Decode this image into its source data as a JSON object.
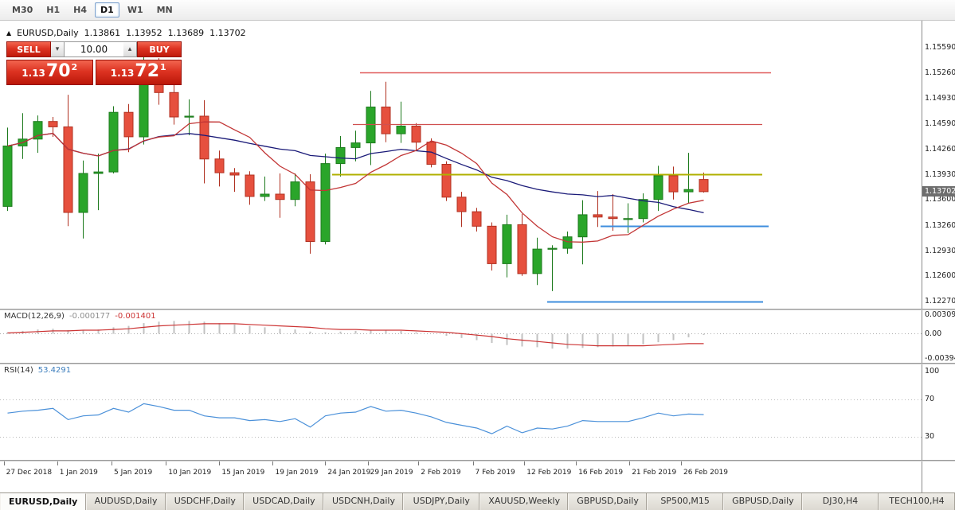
{
  "toolbar": {
    "timeframes": [
      {
        "label": "M30",
        "active": false
      },
      {
        "label": "H1",
        "active": false
      },
      {
        "label": "H4",
        "active": false
      },
      {
        "label": "D1",
        "active": true
      },
      {
        "label": "W1",
        "active": false
      },
      {
        "label": "MN",
        "active": false
      }
    ]
  },
  "chart_header": {
    "symbol": "EURUSD,Daily",
    "open": "1.13861",
    "high": "1.13952",
    "low": "1.13689",
    "close": "1.13702"
  },
  "trade_panel": {
    "sell_label": "SELL",
    "buy_label": "BUY",
    "volume": "10.00",
    "sell_price": {
      "base": "1.13",
      "big": "70",
      "sup": "2"
    },
    "buy_price": {
      "base": "1.13",
      "big": "72",
      "sup": "1"
    }
  },
  "bottom_tabs": [
    {
      "label": "EURUSD,Daily",
      "active": true
    },
    {
      "label": "AUDUSD,Daily",
      "active": false
    },
    {
      "label": "USDCHF,Daily",
      "active": false
    },
    {
      "label": "USDCAD,Daily",
      "active": false
    },
    {
      "label": "USDCNH,Daily",
      "active": false
    },
    {
      "label": "USDJPY,Daily",
      "active": false
    },
    {
      "label": "XAUUSD,Weekly",
      "active": false
    },
    {
      "label": "GBPUSD,Daily",
      "active": false
    },
    {
      "label": "SP500,M15",
      "active": false
    },
    {
      "label": "GBPUSD,Daily",
      "active": false
    },
    {
      "label": "DJ30,H4",
      "active": false
    },
    {
      "label": "TECH100,H4",
      "active": false
    }
  ],
  "chart_data": {
    "type": "candlestick",
    "symbol": "EURUSD",
    "timeframe": "Daily",
    "price_range": {
      "max": 1.1594,
      "min": 1.1217
    },
    "candles": [
      [
        1.1351,
        1.1454,
        1.1345,
        1.143
      ],
      [
        1.143,
        1.1473,
        1.1413,
        1.1439
      ],
      [
        1.1439,
        1.147,
        1.1421,
        1.1462
      ],
      [
        1.1462,
        1.1468,
        1.1442,
        1.1455
      ],
      [
        1.1455,
        1.1497,
        1.1325,
        1.1343
      ],
      [
        1.1343,
        1.1411,
        1.1309,
        1.1394
      ],
      [
        1.1394,
        1.142,
        1.1346,
        1.1396
      ],
      [
        1.1396,
        1.1482,
        1.1394,
        1.1474
      ],
      [
        1.1474,
        1.1485,
        1.1422,
        1.1442
      ],
      [
        1.1442,
        1.1552,
        1.1432,
        1.153
      ],
      [
        1.153,
        1.1545,
        1.1484,
        1.15
      ],
      [
        1.15,
        1.1541,
        1.1458,
        1.1468
      ],
      [
        1.1468,
        1.1491,
        1.1444,
        1.1469
      ],
      [
        1.1469,
        1.149,
        1.1381,
        1.1413
      ],
      [
        1.1413,
        1.1424,
        1.1377,
        1.1395
      ],
      [
        1.1395,
        1.1401,
        1.137,
        1.1392
      ],
      [
        1.1392,
        1.1397,
        1.1353,
        1.1364
      ],
      [
        1.1364,
        1.139,
        1.1358,
        1.1367
      ],
      [
        1.1367,
        1.1394,
        1.1336,
        1.136
      ],
      [
        1.136,
        1.1394,
        1.1351,
        1.1383
      ],
      [
        1.1383,
        1.1393,
        1.1289,
        1.1305
      ],
      [
        1.1305,
        1.142,
        1.1301,
        1.1407
      ],
      [
        1.1407,
        1.1443,
        1.139,
        1.1428
      ],
      [
        1.1428,
        1.145,
        1.141,
        1.1434
      ],
      [
        1.1434,
        1.1502,
        1.1405,
        1.1481
      ],
      [
        1.1481,
        1.1514,
        1.1435,
        1.1446
      ],
      [
        1.1446,
        1.1488,
        1.1434,
        1.1456
      ],
      [
        1.1456,
        1.146,
        1.1424,
        1.1435
      ],
      [
        1.1435,
        1.144,
        1.1402,
        1.1406
      ],
      [
        1.1406,
        1.141,
        1.1358,
        1.1363
      ],
      [
        1.1363,
        1.137,
        1.1324,
        1.1344
      ],
      [
        1.1344,
        1.1349,
        1.1318,
        1.1325
      ],
      [
        1.1325,
        1.133,
        1.1267,
        1.1276
      ],
      [
        1.1276,
        1.134,
        1.1258,
        1.1327
      ],
      [
        1.1327,
        1.1341,
        1.126,
        1.1263
      ],
      [
        1.1263,
        1.131,
        1.1248,
        1.1295
      ],
      [
        1.1295,
        1.13,
        1.124,
        1.1296
      ],
      [
        1.1296,
        1.1318,
        1.1289,
        1.1311
      ],
      [
        1.1311,
        1.1359,
        1.1275,
        1.134
      ],
      [
        1.134,
        1.1371,
        1.1324,
        1.1337
      ],
      [
        1.1337,
        1.1367,
        1.1319,
        1.1335
      ],
      [
        1.1335,
        1.1355,
        1.1316,
        1.1335
      ],
      [
        1.1335,
        1.1368,
        1.133,
        1.136
      ],
      [
        1.136,
        1.1404,
        1.1345,
        1.1391
      ],
      [
        1.1391,
        1.1403,
        1.136,
        1.137
      ],
      [
        1.137,
        1.1421,
        1.1355,
        1.1373
      ],
      [
        1.13861,
        1.13952,
        1.13689,
        1.13702
      ]
    ],
    "colors": {
      "up": "#2aa52a",
      "up_border": "#1d7a1d",
      "down": "#e6503e",
      "down_border": "#b03020"
    },
    "overlays": [
      {
        "name": "ma-slow",
        "period": 20,
        "color": "#1a1a78"
      },
      {
        "name": "ma-fast",
        "period": 8,
        "color": "#c23535"
      }
    ],
    "levels": [
      {
        "price": 1.1526,
        "from": 0.391,
        "to": 0.837,
        "color": "#e05a5a",
        "width": 1.4
      },
      {
        "price": 1.1459,
        "from": 0.383,
        "to": 0.827,
        "color": "#d05050",
        "width": 1.2
      },
      {
        "price": 1.1393,
        "from": 0.36,
        "to": 0.827,
        "color": "#b0b000",
        "width": 2
      },
      {
        "price": 1.1325,
        "from": 0.652,
        "to": 0.834,
        "color": "#3e8ede",
        "width": 2
      },
      {
        "price": 1.1226,
        "from": 0.594,
        "to": 0.828,
        "color": "#3e8ede",
        "width": 2
      }
    ],
    "price_axis_labels": [
      "1.15590",
      "1.15260",
      "1.14930",
      "1.14590",
      "1.14260",
      "1.13930",
      "1.13600",
      "1.13260",
      "1.12930",
      "1.12600",
      "1.12270"
    ],
    "current_price": "1.13702",
    "macd": {
      "label": "MACD(12,26,9)",
      "value_main": "-0.000177",
      "value_signal": "-0.001401",
      "range": {
        "max": 0.0033,
        "min": -0.0041
      },
      "axis_labels": [
        "0.003095",
        "0.00",
        "-0.003947"
      ],
      "colors": {
        "histogram": "#c2c2c2",
        "signal": "#cc3333"
      },
      "histogram": [
        0.0002,
        0.0004,
        0.0006,
        0.0007,
        0.0005,
        0.0005,
        0.0006,
        0.0009,
        0.0011,
        0.0015,
        0.0017,
        0.0018,
        0.0018,
        0.0017,
        0.0015,
        0.0013,
        0.0011,
        0.0009,
        0.0007,
        0.0006,
        0.0003,
        0.0002,
        0.0003,
        0.0004,
        0.0005,
        0.0005,
        0.0004,
        0.0002,
        0,
        -0.0003,
        -0.0006,
        -0.0009,
        -0.0013,
        -0.0016,
        -0.0018,
        -0.0019,
        -0.0021,
        -0.0021,
        -0.002,
        -0.0019,
        -0.0018,
        -0.0017,
        -0.0015,
        -0.0012,
        -0.0009,
        -0.0005,
        -0.000177
      ],
      "signal": [
        0.0001,
        0.0002,
        0.0003,
        0.0004,
        0.0004,
        0.0005,
        0.0005,
        0.0006,
        0.0007,
        0.0009,
        0.0011,
        0.0012,
        0.0013,
        0.0014,
        0.0014,
        0.0014,
        0.0013,
        0.0012,
        0.0011,
        0.001,
        0.0009,
        0.0007,
        0.0006,
        0.0006,
        0.0005,
        0.0005,
        0.0005,
        0.0004,
        0.0003,
        0.0002,
        0,
        -0.0002,
        -0.0004,
        -0.0007,
        -0.0009,
        -0.0011,
        -0.0013,
        -0.0015,
        -0.0016,
        -0.0017,
        -0.0017,
        -0.0017,
        -0.0017,
        -0.0016,
        -0.0015,
        -0.0014,
        -0.001401
      ]
    },
    "rsi": {
      "label": "RSI(14)",
      "value": "53.4291",
      "range": {
        "max": 107,
        "min": 5
      },
      "levels": [
        70,
        30
      ],
      "axis_labels": [
        "100",
        "70",
        "30"
      ],
      "color": "#4a90d9",
      "values": [
        55,
        57,
        58,
        60,
        48,
        52,
        53,
        60,
        56,
        65,
        62,
        58,
        58,
        52,
        50,
        50,
        47,
        48,
        46,
        49,
        40,
        52,
        55,
        56,
        62,
        57,
        58,
        55,
        51,
        45,
        42,
        39,
        33,
        41,
        34,
        39,
        38,
        41,
        47,
        46,
        46,
        46,
        50,
        55,
        52,
        54,
        53.4
      ]
    },
    "x_axis": {
      "labels": [
        "27 Dec 2018",
        "1 Jan 2019",
        "5 Jan 2019",
        "10 Jan 2019",
        "15 Jan 2019",
        "19 Jan 2019",
        "24 Jan 2019",
        "29 Jan 2019",
        "2 Feb 2019",
        "7 Feb 2019",
        "12 Feb 2019",
        "16 Feb 2019",
        "21 Feb 2019",
        "26 Feb 2019"
      ],
      "fracs": [
        0.004,
        0.062,
        0.121,
        0.18,
        0.238,
        0.296,
        0.353,
        0.399,
        0.454,
        0.513,
        0.569,
        0.625,
        0.683,
        0.739
      ]
    }
  }
}
